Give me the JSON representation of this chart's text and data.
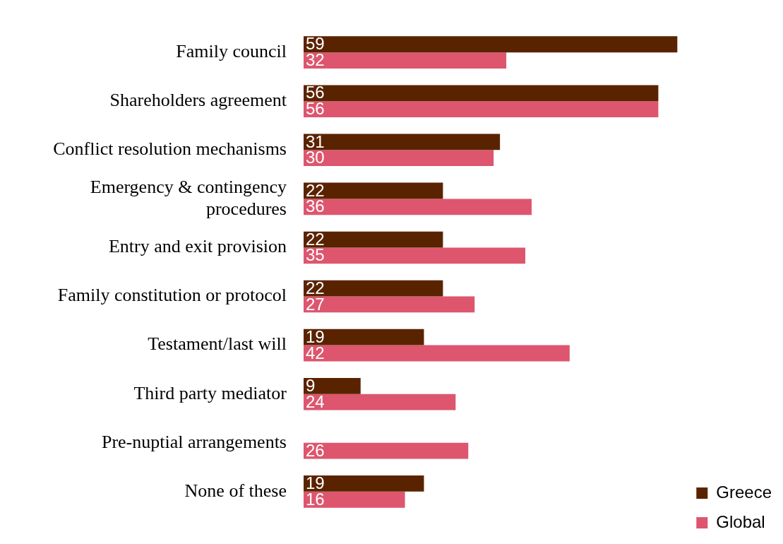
{
  "chart_data": {
    "type": "bar",
    "orientation": "horizontal",
    "categories": [
      "Family council",
      "Shareholders agreement",
      "Conflict resolution mechanisms",
      "Emergency & contingency procedures",
      "Entry and exit provision",
      "Family constitution or protocol",
      "Testament/last will",
      "Third party mediator",
      "Pre-nuptial arrangements",
      "None of these"
    ],
    "series": [
      {
        "name": "Greece",
        "color": "#5a2300",
        "values": [
          59,
          56,
          31,
          22,
          22,
          22,
          19,
          9,
          null,
          19
        ]
      },
      {
        "name": "Global",
        "color": "#dd566e",
        "values": [
          32,
          56,
          30,
          36,
          35,
          27,
          42,
          24,
          26,
          16
        ]
      }
    ],
    "data_labels": true,
    "legend": "bottom right",
    "grid": false,
    "tick_labels": "y"
  }
}
